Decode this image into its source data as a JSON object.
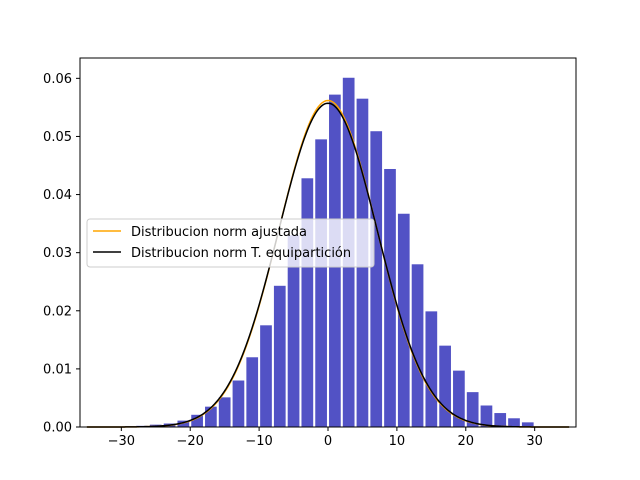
{
  "chart_data": {
    "type": "bar",
    "title": "",
    "xlabel": "",
    "ylabel": "",
    "xlim": [
      -36,
      36
    ],
    "ylim": [
      0,
      0.0635
    ],
    "x_ticks": [
      -30,
      -20,
      -10,
      0,
      10,
      20,
      30
    ],
    "x_tick_labels": [
      "−30",
      "−20",
      "−10",
      "0",
      "10",
      "20",
      "30"
    ],
    "y_ticks": [
      0.0,
      0.01,
      0.02,
      0.03,
      0.04,
      0.05,
      0.06
    ],
    "y_tick_labels": [
      "0.00",
      "0.01",
      "0.02",
      "0.03",
      "0.04",
      "0.05",
      "0.06"
    ],
    "grid": false,
    "legend_position": "center-left",
    "histogram": {
      "color": "#0000aa",
      "bin_centers": [
        -29,
        -27,
        -25,
        -23,
        -21,
        -19,
        -17,
        -15,
        -13,
        -11,
        -9,
        -7,
        -5,
        -3,
        -1,
        1,
        3,
        5,
        7,
        9,
        11,
        13,
        15,
        17,
        19,
        21,
        23,
        25,
        27,
        29
      ],
      "values": [
        0.0001,
        0.0002,
        0.0004,
        0.0006,
        0.0011,
        0.0021,
        0.0035,
        0.0051,
        0.008,
        0.012,
        0.0175,
        0.0243,
        0.033,
        0.0428,
        0.0495,
        0.0572,
        0.0601,
        0.0565,
        0.0509,
        0.0444,
        0.0367,
        0.028,
        0.0199,
        0.014,
        0.0097,
        0.006,
        0.0037,
        0.0024,
        0.0015,
        0.0008
      ]
    },
    "series": [
      {
        "name": "Distribucion norm ajustada",
        "color": "#ffa500",
        "mean": 0.0,
        "std": 7.1
      },
      {
        "name": "Distribucion norm T. equipartición",
        "color": "#000000",
        "mean": 0.0,
        "std": 7.16
      }
    ],
    "curve_x_range": [
      -35,
      35
    ]
  }
}
